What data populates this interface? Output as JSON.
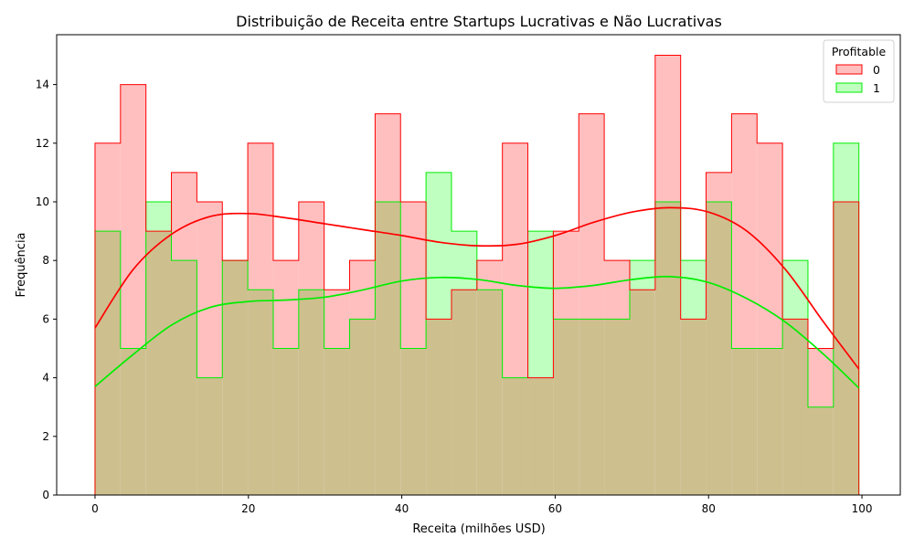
{
  "chart_data": {
    "type": "histogram",
    "title": "Distribuição de Receita entre Startups Lucrativas e Não Lucrativas",
    "xlabel": "Receita (milhões USD)",
    "ylabel": "Frequência",
    "xlim": [
      -5,
      105
    ],
    "ylim": [
      0,
      15.7
    ],
    "xticks": [
      0,
      20,
      40,
      60,
      80,
      100
    ],
    "yticks": [
      0,
      2,
      4,
      6,
      8,
      10,
      12,
      14
    ],
    "grid": false,
    "legend": {
      "title": "Profitable",
      "position": "top-right"
    },
    "bin_edges": [
      0,
      3.32,
      6.64,
      9.96,
      13.28,
      16.6,
      19.92,
      23.24,
      26.56,
      29.88,
      33.2,
      36.52,
      39.84,
      43.16,
      46.48,
      49.8,
      53.12,
      56.44,
      59.76,
      63.08,
      66.4,
      69.72,
      73.04,
      76.36,
      79.68,
      83.0,
      86.32,
      89.64,
      92.96,
      96.28,
      99.6
    ],
    "series": [
      {
        "name": "0",
        "color": "#ff0000",
        "fill": "#ffbfbf",
        "counts": [
          12,
          14,
          9,
          11,
          10,
          8,
          12,
          8,
          10,
          7,
          8,
          13,
          10,
          6,
          7,
          8,
          12,
          4,
          9,
          13,
          8,
          7,
          15,
          6,
          11,
          13,
          12,
          6,
          5,
          10
        ],
        "kde": {
          "x": [
            0,
            5,
            10,
            15,
            20,
            25,
            30,
            35,
            40,
            45,
            50,
            55,
            60,
            65,
            70,
            75,
            80,
            85,
            90,
            95,
            99.6
          ],
          "y": [
            5.7,
            7.7,
            8.9,
            9.5,
            9.6,
            9.45,
            9.25,
            9.05,
            8.85,
            8.62,
            8.5,
            8.55,
            8.85,
            9.3,
            9.65,
            9.8,
            9.65,
            9.0,
            7.7,
            5.9,
            4.3
          ]
        }
      },
      {
        "name": "1",
        "color": "#00ee00",
        "fill": "#bfffbf",
        "counts": [
          9,
          5,
          10,
          8,
          4,
          8,
          7,
          5,
          7,
          5,
          6,
          10,
          5,
          11,
          9,
          7,
          4,
          9,
          6,
          6,
          6,
          8,
          10,
          8,
          10,
          5,
          5,
          8,
          3,
          12
        ],
        "kde": {
          "x": [
            0,
            5,
            10,
            15,
            20,
            25,
            30,
            35,
            40,
            45,
            50,
            55,
            60,
            65,
            70,
            75,
            80,
            85,
            90,
            95,
            99.6
          ],
          "y": [
            3.7,
            4.8,
            5.8,
            6.4,
            6.6,
            6.65,
            6.75,
            7.0,
            7.3,
            7.42,
            7.35,
            7.15,
            7.05,
            7.15,
            7.35,
            7.45,
            7.25,
            6.7,
            5.9,
            4.8,
            3.65
          ]
        }
      }
    ],
    "overlap_fill": "#cebf8f"
  }
}
